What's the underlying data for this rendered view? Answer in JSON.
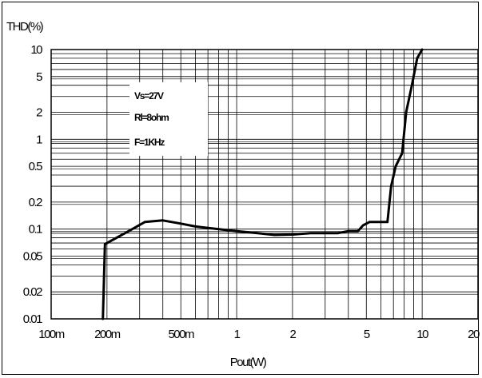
{
  "chart_data": {
    "type": "line",
    "title": "",
    "xlabel": "Pout(W)",
    "ylabel": "THD(%)",
    "x_scale": "log",
    "y_scale": "log",
    "xlim": [
      0.1,
      20
    ],
    "ylim": [
      0.01,
      10
    ],
    "grid": true,
    "x_ticks": [
      {
        "value": 0.1,
        "label": "100m"
      },
      {
        "value": 0.2,
        "label": "200m"
      },
      {
        "value": 0.5,
        "label": "500m"
      },
      {
        "value": 1,
        "label": "1"
      },
      {
        "value": 2,
        "label": "2"
      },
      {
        "value": 5,
        "label": "5"
      },
      {
        "value": 10,
        "label": "10"
      },
      {
        "value": 20,
        "label": "20"
      }
    ],
    "y_ticks": [
      {
        "value": 0.01,
        "label": "0.01"
      },
      {
        "value": 0.02,
        "label": "0.02"
      },
      {
        "value": 0.05,
        "label": "0.05"
      },
      {
        "value": 0.1,
        "label": "0.1"
      },
      {
        "value": 0.2,
        "label": "0.2"
      },
      {
        "value": 0.5,
        "label": "0.5"
      },
      {
        "value": 1,
        "label": "1"
      },
      {
        "value": 2,
        "label": "2"
      },
      {
        "value": 5,
        "label": "5"
      },
      {
        "value": 10,
        "label": "10"
      }
    ],
    "annotations": [
      "Vs=27V",
      "Rl=8ohm",
      "F=1KHz"
    ],
    "series": [
      {
        "x": [
          0.19,
          0.195,
          0.25,
          0.32,
          0.4,
          0.5,
          0.6,
          0.8,
          1.0,
          1.3,
          1.6,
          2.0,
          2.5,
          3.0,
          3.5,
          4.0,
          4.5,
          4.8,
          5.2,
          5.6,
          6.5,
          6.8,
          7.2,
          7.8,
          8.2,
          8.8,
          9.4,
          10.0
        ],
        "y": [
          0.01,
          0.068,
          0.09,
          0.12,
          0.125,
          0.115,
          0.107,
          0.1,
          0.095,
          0.09,
          0.086,
          0.087,
          0.09,
          0.09,
          0.09,
          0.095,
          0.095,
          0.11,
          0.12,
          0.12,
          0.12,
          0.3,
          0.5,
          0.7,
          2.0,
          4.0,
          8.0,
          10.0
        ]
      }
    ]
  }
}
